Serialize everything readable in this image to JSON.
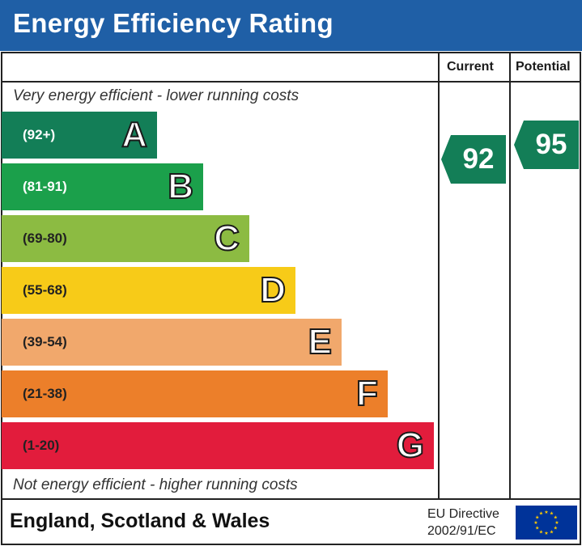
{
  "header": {
    "title": "Energy Efficiency Rating"
  },
  "columns": {
    "current": "Current",
    "potential": "Potential"
  },
  "notes": {
    "top": "Very energy efficient - lower running costs",
    "bottom": "Not energy efficient - higher running costs"
  },
  "bands": [
    {
      "range": "(92+)",
      "letter": "A",
      "color": "#137e57"
    },
    {
      "range": "(81-91)",
      "letter": "B",
      "color": "#1ba04b"
    },
    {
      "range": "(69-80)",
      "letter": "C",
      "color": "#8cbb42"
    },
    {
      "range": "(55-68)",
      "letter": "D",
      "color": "#f7cb18"
    },
    {
      "range": "(39-54)",
      "letter": "E",
      "color": "#f1a86c"
    },
    {
      "range": "(21-38)",
      "letter": "F",
      "color": "#ec7f2a"
    },
    {
      "range": "(1-20)",
      "letter": "G",
      "color": "#e21c3c"
    }
  ],
  "current": {
    "value": "92",
    "band": "A",
    "color": "#137e57"
  },
  "potential": {
    "value": "95",
    "band": "A",
    "color": "#137e57"
  },
  "footer": {
    "region": "England, Scotland & Wales",
    "directive_line1": "EU Directive",
    "directive_line2": "2002/91/EC",
    "flag_color": "#003399",
    "star_color": "#ffcc00"
  }
}
